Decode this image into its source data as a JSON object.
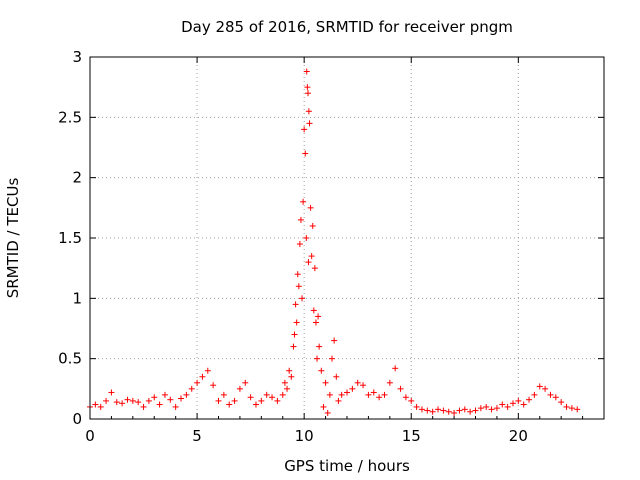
{
  "chart_data": {
    "type": "scatter",
    "title": "Day 285 of 2016, SRMTID for receiver pngm",
    "xlabel": "GPS time / hours",
    "ylabel": "SRMTID / TECUs",
    "xlim": [
      0,
      24
    ],
    "ylim": [
      0,
      3
    ],
    "xticks": [
      0,
      5,
      10,
      15,
      20
    ],
    "yticks": [
      0,
      0.5,
      1,
      1.5,
      2,
      2.5,
      3
    ],
    "xtick_labels": [
      "0",
      "5",
      "10",
      "15",
      "20"
    ],
    "ytick_labels": [
      "0",
      "0.5",
      "1",
      "1.5",
      "2",
      "2.5",
      "3"
    ],
    "grid": true,
    "marker": "+",
    "color": "#ff0000",
    "series": [
      {
        "name": "SRMTID",
        "x": [
          0.0,
          0.25,
          0.5,
          0.75,
          1.0,
          1.25,
          1.5,
          1.75,
          2.0,
          2.25,
          2.5,
          2.75,
          3.0,
          3.25,
          3.5,
          3.75,
          4.0,
          4.25,
          4.5,
          4.75,
          5.0,
          5.25,
          5.5,
          5.75,
          6.0,
          6.25,
          6.5,
          6.75,
          7.0,
          7.25,
          7.5,
          7.75,
          8.0,
          8.25,
          8.5,
          8.75,
          9.0,
          9.1,
          9.2,
          9.3,
          9.4,
          9.5,
          9.55,
          9.6,
          9.65,
          9.7,
          9.75,
          9.8,
          9.85,
          9.9,
          9.95,
          10.0,
          10.05,
          10.1,
          10.12,
          10.15,
          10.18,
          10.2,
          10.22,
          10.25,
          10.3,
          10.35,
          10.4,
          10.45,
          10.5,
          10.55,
          10.6,
          10.65,
          10.7,
          10.8,
          10.9,
          11.0,
          11.1,
          11.2,
          11.3,
          11.4,
          11.5,
          11.6,
          11.75,
          12.0,
          12.25,
          12.5,
          12.75,
          13.0,
          13.25,
          13.5,
          13.75,
          14.0,
          14.25,
          14.5,
          14.75,
          15.0,
          15.25,
          15.5,
          15.75,
          16.0,
          16.25,
          16.5,
          16.75,
          17.0,
          17.25,
          17.5,
          17.75,
          18.0,
          18.25,
          18.5,
          18.75,
          19.0,
          19.25,
          19.5,
          19.75,
          20.0,
          20.25,
          20.5,
          20.75,
          21.0,
          21.25,
          21.5,
          21.75,
          22.0,
          22.25,
          22.5,
          22.75
        ],
        "y": [
          0.1,
          0.12,
          0.1,
          0.15,
          0.22,
          0.14,
          0.13,
          0.16,
          0.15,
          0.14,
          0.1,
          0.15,
          0.18,
          0.12,
          0.2,
          0.16,
          0.1,
          0.17,
          0.2,
          0.25,
          0.3,
          0.35,
          0.4,
          0.28,
          0.15,
          0.2,
          0.12,
          0.15,
          0.25,
          0.3,
          0.18,
          0.12,
          0.15,
          0.2,
          0.18,
          0.15,
          0.2,
          0.3,
          0.25,
          0.4,
          0.35,
          0.6,
          0.7,
          0.95,
          0.8,
          1.2,
          1.1,
          1.45,
          1.65,
          1.0,
          1.8,
          2.4,
          2.2,
          1.5,
          2.88,
          2.75,
          2.7,
          1.3,
          2.55,
          2.45,
          1.75,
          1.35,
          1.6,
          0.9,
          1.25,
          0.8,
          0.5,
          0.85,
          0.6,
          0.4,
          0.1,
          0.3,
          0.05,
          0.2,
          0.5,
          0.65,
          0.35,
          0.15,
          0.2,
          0.22,
          0.25,
          0.3,
          0.28,
          0.2,
          0.22,
          0.18,
          0.2,
          0.3,
          0.42,
          0.25,
          0.18,
          0.15,
          0.1,
          0.08,
          0.07,
          0.06,
          0.08,
          0.07,
          0.06,
          0.05,
          0.07,
          0.08,
          0.06,
          0.07,
          0.09,
          0.1,
          0.08,
          0.09,
          0.12,
          0.1,
          0.13,
          0.15,
          0.12,
          0.16,
          0.2,
          0.27,
          0.25,
          0.2,
          0.18,
          0.14,
          0.1,
          0.09,
          0.08
        ]
      }
    ]
  }
}
